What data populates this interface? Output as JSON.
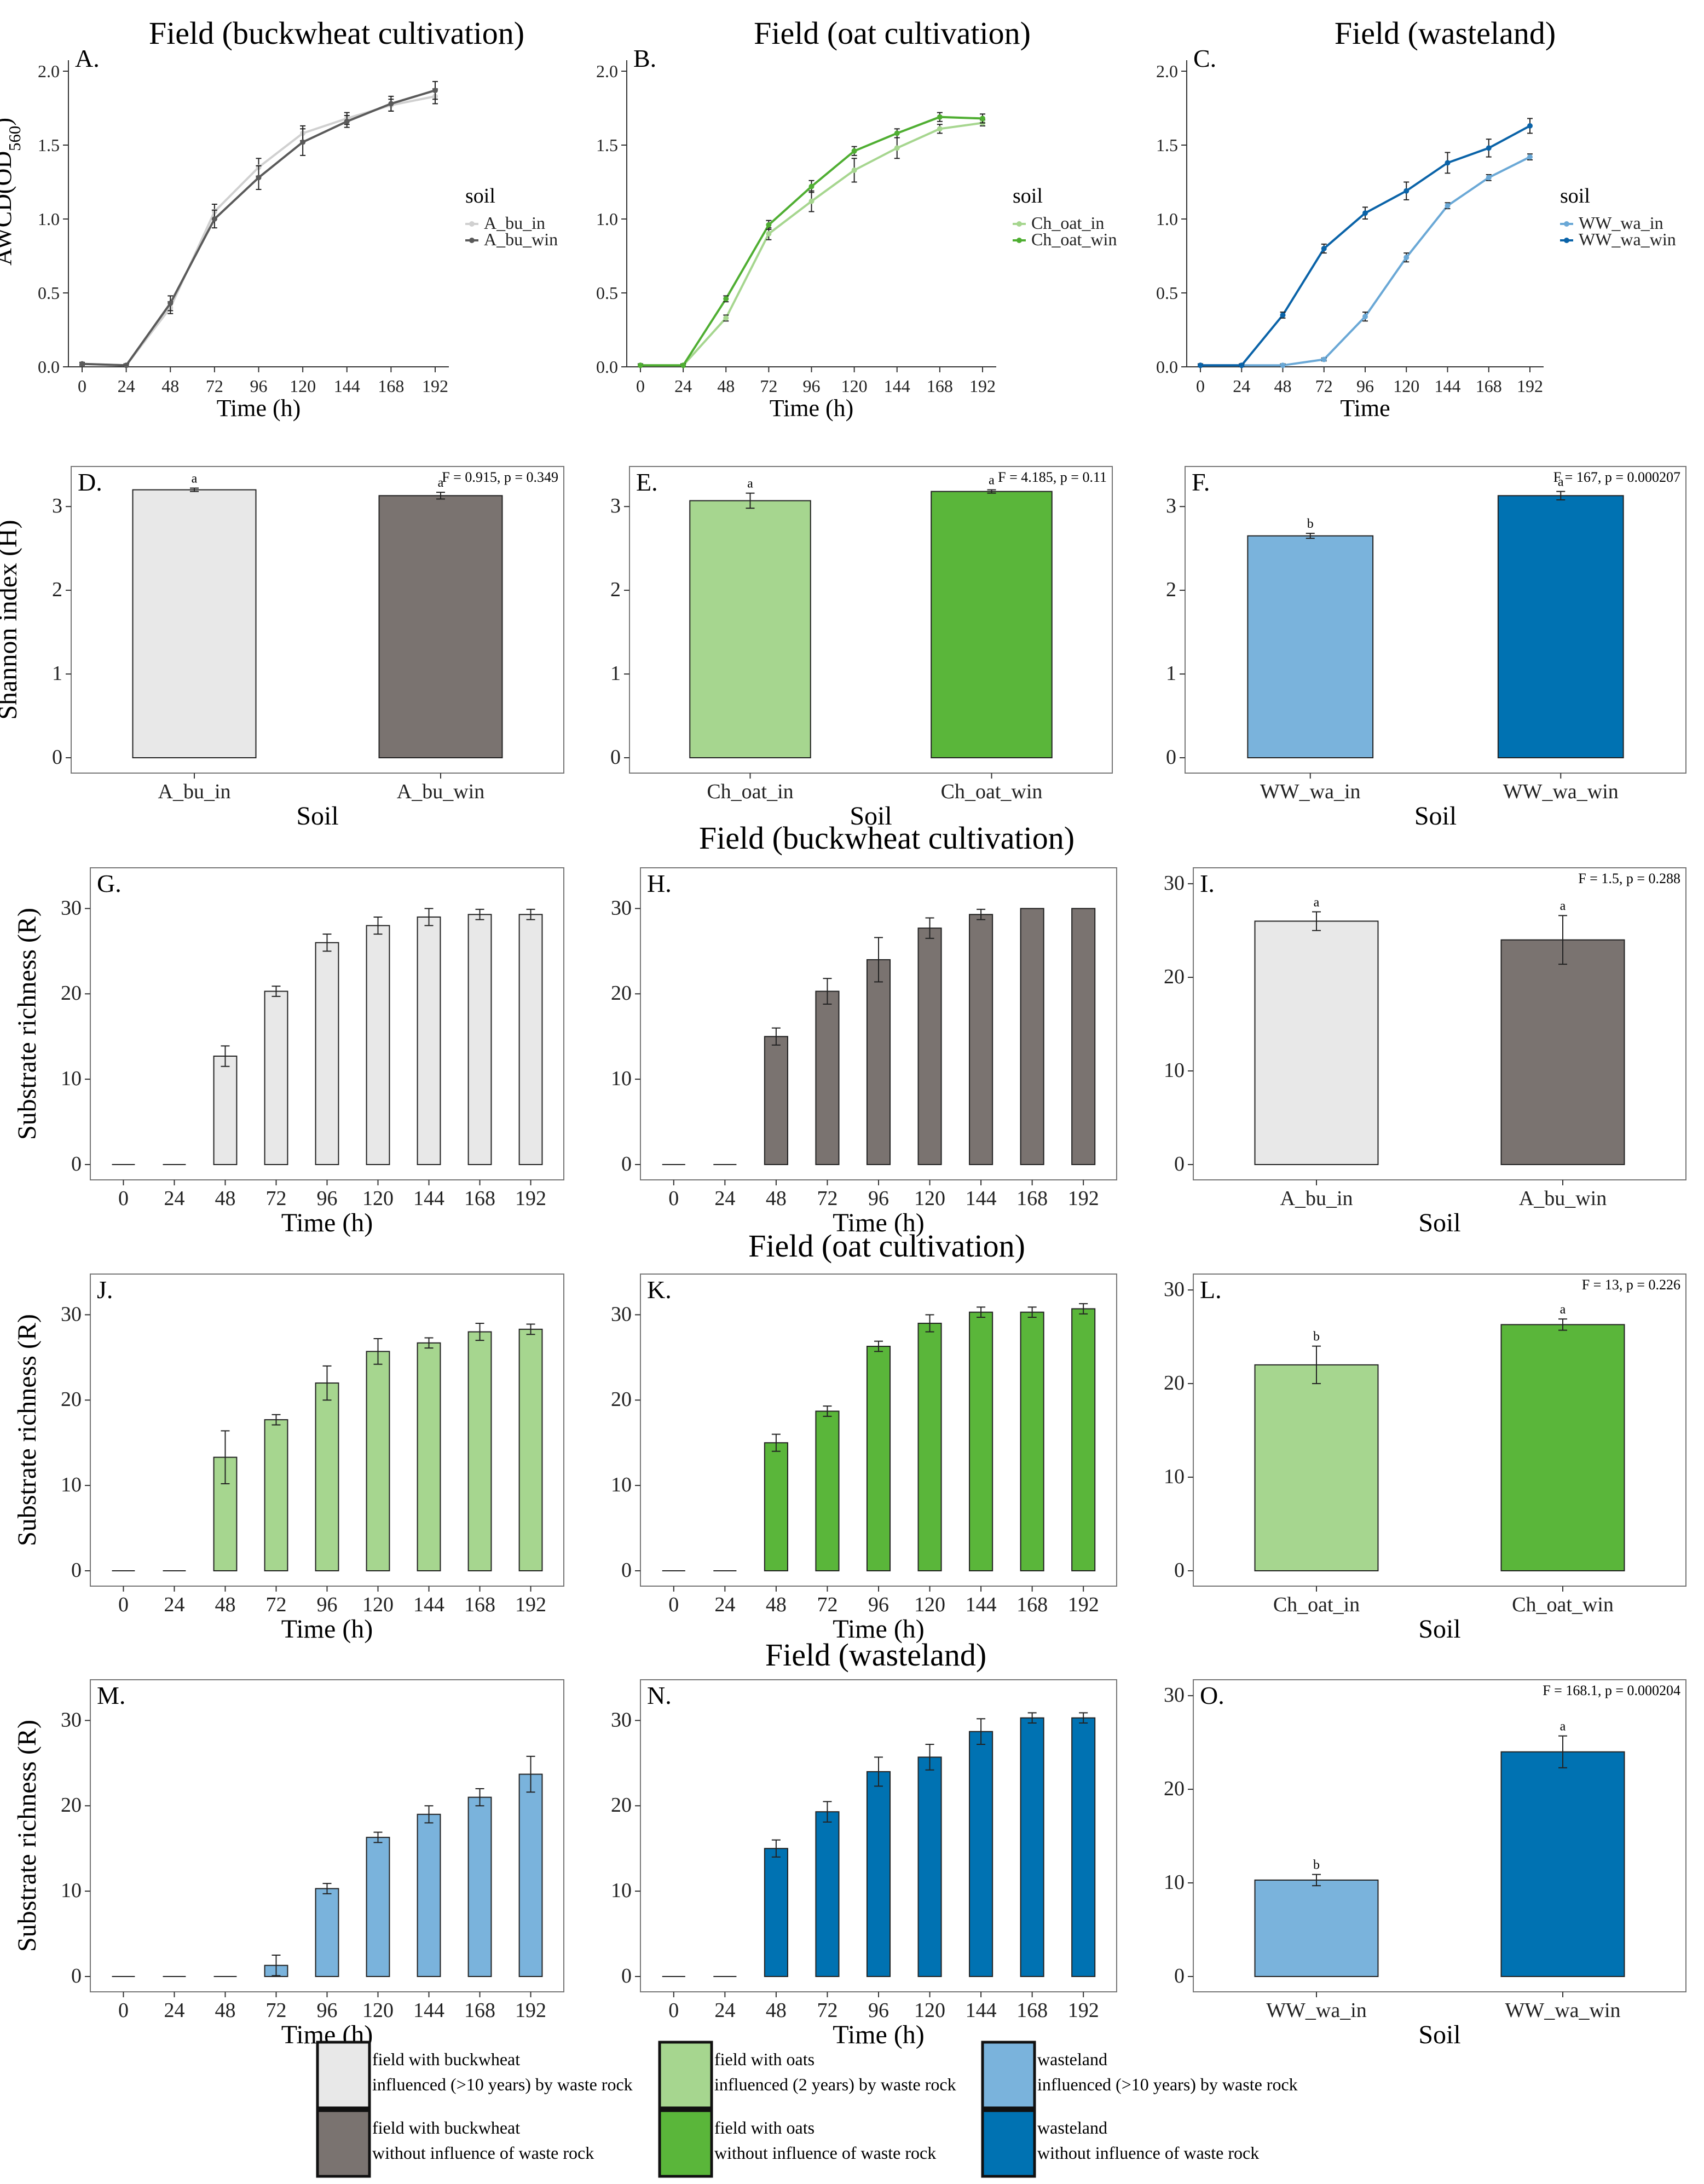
{
  "colors": {
    "bu_in": "#e8e8e8",
    "bu_win": "#7a7370",
    "oat_in": "#a6d68f",
    "oat_win": "#5ab63a",
    "wa_in": "#7ab3dc",
    "wa_win": "#0072b2",
    "line_bu_in": "#d0d0d0",
    "line_bu_win": "#5a5a5a",
    "line_oat_in": "#a6d68f",
    "line_oat_win": "#4fae32",
    "line_wa_in": "#6aa8d6",
    "line_wa_win": "#0a63a8"
  },
  "headings": {
    "row1": [
      "Field (buckwheat cultivation)",
      "Field (oat cultivation)",
      "Field (wasteland)"
    ],
    "row3": "Field (buckwheat cultivation)",
    "row4": "Field (oat cultivation)",
    "row5": "Field (wasteland)"
  },
  "chart_data": [
    {
      "id": "A",
      "letter": "A.",
      "type": "line",
      "x": [
        0,
        24,
        48,
        72,
        96,
        120,
        144,
        168,
        192
      ],
      "xlabel": "Time (h)",
      "ylabel": "AWCD(OD560)",
      "ylim": [
        0,
        2.0
      ],
      "yticks": [
        0.0,
        0.5,
        1.0,
        1.5,
        2.0
      ],
      "yticklabels": [
        "0.0",
        "0.5",
        "1.0",
        "1.5",
        "2.0"
      ],
      "legend_title": "soil",
      "series": [
        {
          "name": "A_bu_in",
          "color_key": "line_bu_in",
          "values": [
            0.02,
            0.01,
            0.4,
            1.05,
            1.35,
            1.58,
            1.68,
            1.77,
            1.83
          ],
          "err": [
            0.01,
            0.01,
            0.04,
            0.05,
            0.06,
            0.05,
            0.04,
            0.04,
            0.05
          ]
        },
        {
          "name": "A_bu_win",
          "color_key": "line_bu_win",
          "values": [
            0.02,
            0.01,
            0.43,
            1.0,
            1.28,
            1.52,
            1.66,
            1.78,
            1.87
          ],
          "err": [
            0.01,
            0.01,
            0.05,
            0.06,
            0.08,
            0.09,
            0.04,
            0.05,
            0.06
          ]
        }
      ]
    },
    {
      "id": "B",
      "letter": "B.",
      "type": "line",
      "x": [
        0,
        24,
        48,
        72,
        96,
        120,
        144,
        168,
        192
      ],
      "xlabel": "Time (h)",
      "ylim": [
        0,
        2.0
      ],
      "yticks": [
        0.0,
        0.5,
        1.0,
        1.5,
        2.0
      ],
      "yticklabels": [
        "0.0",
        "0.5",
        "1.0",
        "1.5",
        "2.0"
      ],
      "legend_title": "soil",
      "series": [
        {
          "name": "Ch_oat_in",
          "color_key": "line_oat_in",
          "values": [
            0.01,
            0.01,
            0.33,
            0.9,
            1.12,
            1.33,
            1.48,
            1.61,
            1.65
          ],
          "err": [
            0.01,
            0.01,
            0.02,
            0.04,
            0.07,
            0.08,
            0.07,
            0.03,
            0.02
          ]
        },
        {
          "name": "Ch_oat_win",
          "color_key": "line_oat_win",
          "values": [
            0.01,
            0.01,
            0.46,
            0.96,
            1.22,
            1.46,
            1.58,
            1.69,
            1.68
          ],
          "err": [
            0.01,
            0.01,
            0.02,
            0.03,
            0.04,
            0.03,
            0.03,
            0.03,
            0.03
          ]
        }
      ]
    },
    {
      "id": "C",
      "letter": "C.",
      "type": "line",
      "x": [
        0,
        24,
        48,
        72,
        96,
        120,
        144,
        168,
        192
      ],
      "xlabel": "Time",
      "ylim": [
        0,
        2.0
      ],
      "yticks": [
        0.0,
        0.5,
        1.0,
        1.5,
        2.0
      ],
      "yticklabels": [
        "0.0",
        "0.5",
        "1.0",
        "1.5",
        "2.0"
      ],
      "legend_title": "soil",
      "series": [
        {
          "name": "WW_wa_in",
          "color_key": "line_wa_in",
          "values": [
            0.01,
            0.01,
            0.01,
            0.05,
            0.34,
            0.74,
            1.09,
            1.28,
            1.42
          ],
          "err": [
            0.01,
            0.01,
            0.01,
            0.01,
            0.03,
            0.03,
            0.02,
            0.02,
            0.02
          ]
        },
        {
          "name": "WW_wa_win",
          "color_key": "line_wa_win",
          "values": [
            0.01,
            0.01,
            0.35,
            0.8,
            1.04,
            1.19,
            1.38,
            1.48,
            1.63
          ],
          "err": [
            0.01,
            0.01,
            0.02,
            0.03,
            0.04,
            0.06,
            0.07,
            0.06,
            0.05
          ]
        }
      ]
    },
    {
      "id": "D",
      "letter": "D.",
      "type": "bar",
      "categories": [
        "A_bu_in",
        "A_bu_win"
      ],
      "values": [
        3.2,
        3.13
      ],
      "err": [
        0.02,
        0.04
      ],
      "sig": [
        "a",
        "a"
      ],
      "color_keys": [
        "bu_in",
        "bu_win"
      ],
      "stat": "F = 0.915, p = 0.349",
      "ylabel": "Shannon index (H)",
      "xlabel": "Soil",
      "ylim": [
        0,
        3.4
      ],
      "yticks": [
        0,
        1,
        2,
        3
      ],
      "yticklabels": [
        "0",
        "1",
        "2",
        "3"
      ]
    },
    {
      "id": "E",
      "letter": "E.",
      "type": "bar",
      "categories": [
        "Ch_oat_in",
        "Ch_oat_win"
      ],
      "values": [
        3.07,
        3.18
      ],
      "err": [
        0.09,
        0.02
      ],
      "sig": [
        "a",
        "a"
      ],
      "color_keys": [
        "oat_in",
        "oat_win"
      ],
      "stat": "F = 4.185, p = 0.11",
      "xlabel": "Soil",
      "ylim": [
        0,
        3.4
      ],
      "yticks": [
        0,
        1,
        2,
        3
      ],
      "yticklabels": [
        "0",
        "1",
        "2",
        "3"
      ]
    },
    {
      "id": "F",
      "letter": "F.",
      "type": "bar",
      "categories": [
        "WW_wa_in",
        "WW_wa_win"
      ],
      "values": [
        2.65,
        3.13
      ],
      "err": [
        0.03,
        0.05
      ],
      "sig": [
        "b",
        "a"
      ],
      "color_keys": [
        "wa_in",
        "wa_win"
      ],
      "stat": "F = 167, p = 0.000207",
      "xlabel": "Soil",
      "ylim": [
        0,
        3.4
      ],
      "yticks": [
        0,
        1,
        2,
        3
      ],
      "yticklabels": [
        "0",
        "1",
        "2",
        "3"
      ]
    },
    {
      "id": "G",
      "letter": "G.",
      "type": "bar",
      "categories": [
        "0",
        "24",
        "48",
        "72",
        "96",
        "120",
        "144",
        "168",
        "192"
      ],
      "values": [
        0,
        0,
        12.7,
        20.3,
        26.0,
        28.0,
        29.0,
        29.3,
        29.3
      ],
      "err": [
        0,
        0,
        1.2,
        0.6,
        1.0,
        1.0,
        1.0,
        0.6,
        0.6
      ],
      "color_key": "bu_in",
      "ylabel": "Substrate richness (R)",
      "xlabel": "Time (h)",
      "ylim": [
        0,
        34
      ],
      "yticks": [
        0,
        10,
        20,
        30
      ],
      "yticklabels": [
        "0",
        "10",
        "20",
        "30"
      ]
    },
    {
      "id": "H",
      "letter": "H.",
      "type": "bar",
      "categories": [
        "0",
        "24",
        "48",
        "72",
        "96",
        "120",
        "144",
        "168",
        "192"
      ],
      "values": [
        0,
        0,
        15.0,
        20.3,
        24.0,
        27.7,
        29.3,
        30.0,
        30.0
      ],
      "err": [
        0,
        0,
        1.0,
        1.5,
        2.6,
        1.2,
        0.6,
        0,
        0
      ],
      "color_key": "bu_win",
      "xlabel": "Time (h)",
      "ylim": [
        0,
        34
      ],
      "yticks": [
        0,
        10,
        20,
        30
      ],
      "yticklabels": [
        "0",
        "10",
        "20",
        "30"
      ]
    },
    {
      "id": "I",
      "letter": "I.",
      "type": "bar",
      "categories": [
        "A_bu_in",
        "A_bu_win"
      ],
      "values": [
        26.0,
        24.0
      ],
      "err": [
        1.0,
        2.6
      ],
      "sig": [
        "a",
        "a"
      ],
      "color_keys": [
        "bu_in",
        "bu_win"
      ],
      "stat": "F = 1.5, p = 0.288",
      "xlabel": "Soil",
      "ylim": [
        0,
        31
      ],
      "yticks": [
        0,
        10,
        20,
        30
      ],
      "yticklabels": [
        "0",
        "10",
        "20",
        "30"
      ]
    },
    {
      "id": "J",
      "letter": "J.",
      "type": "bar",
      "categories": [
        "0",
        "24",
        "48",
        "72",
        "96",
        "120",
        "144",
        "168",
        "192"
      ],
      "values": [
        0,
        0,
        13.3,
        17.7,
        22.0,
        25.7,
        26.7,
        28.0,
        28.3
      ],
      "err": [
        0,
        0,
        3.1,
        0.6,
        2.0,
        1.5,
        0.6,
        1.0,
        0.6
      ],
      "color_key": "oat_in",
      "ylabel": "Substrate richness (R)",
      "xlabel": "Time (h)",
      "ylim": [
        0,
        34
      ],
      "yticks": [
        0,
        10,
        20,
        30
      ],
      "yticklabels": [
        "0",
        "10",
        "20",
        "30"
      ]
    },
    {
      "id": "K",
      "letter": "K.",
      "type": "bar",
      "categories": [
        "0",
        "24",
        "48",
        "72",
        "96",
        "120",
        "144",
        "168",
        "192"
      ],
      "values": [
        0,
        0,
        15.0,
        18.7,
        26.3,
        29.0,
        30.3,
        30.3,
        30.7
      ],
      "err": [
        0,
        0,
        1.0,
        0.6,
        0.6,
        1.0,
        0.6,
        0.6,
        0.6
      ],
      "color_key": "oat_win",
      "xlabel": "Time (h)",
      "ylim": [
        0,
        34
      ],
      "yticks": [
        0,
        10,
        20,
        30
      ],
      "yticklabels": [
        "0",
        "10",
        "20",
        "30"
      ]
    },
    {
      "id": "L",
      "letter": "L.",
      "type": "bar",
      "categories": [
        "Ch_oat_in",
        "Ch_oat_win"
      ],
      "values": [
        22.0,
        26.3
      ],
      "err": [
        2.0,
        0.6
      ],
      "sig": [
        "b",
        "a"
      ],
      "color_keys": [
        "oat_in",
        "oat_win"
      ],
      "stat": "F = 13, p = 0.226",
      "xlabel": "Soil",
      "ylim": [
        0,
        31
      ],
      "yticks": [
        0,
        10,
        20,
        30
      ],
      "yticklabels": [
        "0",
        "10",
        "20",
        "30"
      ]
    },
    {
      "id": "M",
      "letter": "M.",
      "type": "bar",
      "categories": [
        "0",
        "24",
        "48",
        "72",
        "96",
        "120",
        "144",
        "168",
        "192"
      ],
      "values": [
        0,
        0,
        0,
        1.3,
        10.3,
        16.3,
        19.0,
        21.0,
        23.7
      ],
      "err": [
        0,
        0,
        0,
        1.2,
        0.6,
        0.6,
        1.0,
        1.0,
        2.1
      ],
      "color_key": "wa_in",
      "ylabel": "Substrate richness (R)",
      "xlabel": "Time (h)",
      "ylim": [
        0,
        34
      ],
      "yticks": [
        0,
        10,
        20,
        30
      ],
      "yticklabels": [
        "0",
        "10",
        "20",
        "30"
      ]
    },
    {
      "id": "N",
      "letter": "N.",
      "type": "bar",
      "categories": [
        "0",
        "24",
        "48",
        "72",
        "96",
        "120",
        "144",
        "168",
        "192"
      ],
      "values": [
        0,
        0,
        15.0,
        19.3,
        24.0,
        25.7,
        28.7,
        30.3,
        30.3
      ],
      "err": [
        0,
        0,
        1.0,
        1.2,
        1.7,
        1.5,
        1.5,
        0.6,
        0.6
      ],
      "color_key": "wa_win",
      "xlabel": "Time (h)",
      "ylim": [
        0,
        34
      ],
      "yticks": [
        0,
        10,
        20,
        30
      ],
      "yticklabels": [
        "0",
        "10",
        "20",
        "30"
      ]
    },
    {
      "id": "O",
      "letter": "O.",
      "type": "bar",
      "categories": [
        "WW_wa_in",
        "WW_wa_win"
      ],
      "values": [
        10.3,
        24.0
      ],
      "err": [
        0.6,
        1.7
      ],
      "sig": [
        "b",
        "a"
      ],
      "color_keys": [
        "wa_in",
        "wa_win"
      ],
      "stat": "F = 168.1, p = 0.000204",
      "xlabel": "Soil",
      "ylim": [
        0,
        31
      ],
      "yticks": [
        0,
        10,
        20,
        30
      ],
      "yticklabels": [
        "0",
        "10",
        "20",
        "30"
      ]
    }
  ],
  "key": {
    "items": [
      {
        "color_key": "bu_in",
        "lines": [
          "field with buckwheat",
          "influenced (>10 years) by waste rock"
        ]
      },
      {
        "color_key": "bu_win",
        "lines": [
          "field with buckwheat",
          "without influence of waste rock"
        ]
      },
      {
        "color_key": "oat_in",
        "lines": [
          "field with oats",
          "influenced (2 years) by waste rock"
        ]
      },
      {
        "color_key": "oat_win",
        "lines": [
          "field with oats",
          "without influence of waste rock"
        ]
      },
      {
        "color_key": "wa_in",
        "lines": [
          "wasteland",
          "influenced (>10 years) by waste rock"
        ]
      },
      {
        "color_key": "wa_win",
        "lines": [
          "wasteland",
          "without influence of waste rock"
        ]
      }
    ]
  }
}
